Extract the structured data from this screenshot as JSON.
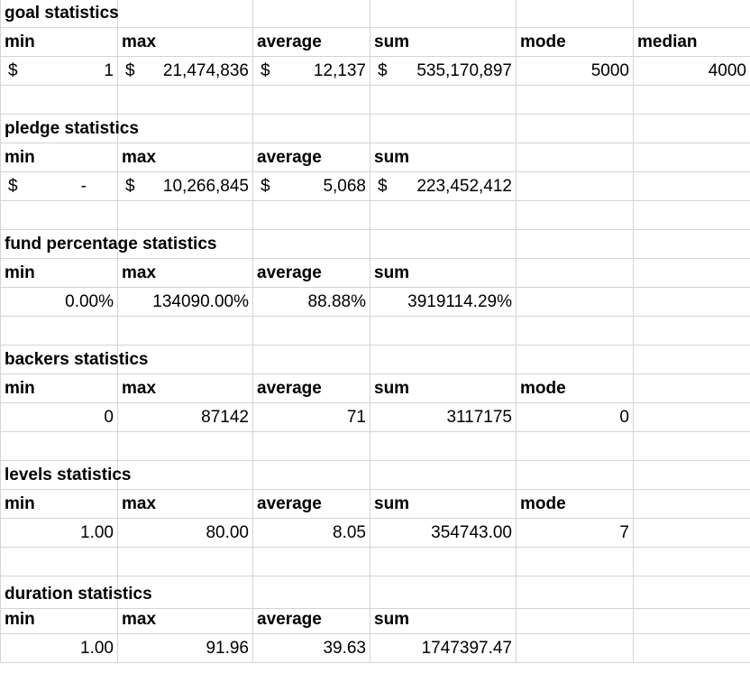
{
  "sections": {
    "goal": {
      "title": "goal statistics",
      "headers": {
        "min": "min",
        "max": "max",
        "average": "average",
        "sum": "sum",
        "mode": "mode",
        "median": "median"
      },
      "values": {
        "min_cur": "$",
        "min": "1",
        "max_cur": "$",
        "max": "21,474,836",
        "average_cur": "$",
        "average": "12,137",
        "sum_cur": "$",
        "sum": "535,170,897",
        "mode": "5000",
        "median": "4000"
      }
    },
    "pledge": {
      "title": "pledge statistics",
      "headers": {
        "min": "min",
        "max": "max",
        "average": "average",
        "sum": "sum"
      },
      "values": {
        "min_cur": "$",
        "min": "-",
        "max_cur": "$",
        "max": "10,266,845",
        "average_cur": "$",
        "average": "5,068",
        "sum_cur": "$",
        "sum": "223,452,412"
      }
    },
    "fund_percentage": {
      "title": "fund percentage statistics",
      "headers": {
        "min": "min",
        "max": "max",
        "average": "average",
        "sum": "sum"
      },
      "values": {
        "min": "0.00%",
        "max": "134090.00%",
        "average": "88.88%",
        "sum": "3919114.29%"
      }
    },
    "backers": {
      "title": "backers statistics",
      "headers": {
        "min": "min",
        "max": "max",
        "average": "average",
        "sum": "sum",
        "mode": "mode"
      },
      "values": {
        "min": "0",
        "max": "87142",
        "average": "71",
        "sum": "3117175",
        "mode": "0"
      }
    },
    "levels": {
      "title": "levels statistics",
      "headers": {
        "min": "min",
        "max": "max",
        "average": "average",
        "sum": "sum",
        "mode": "mode"
      },
      "values": {
        "min": "1.00",
        "max": "80.00",
        "average": "8.05",
        "sum": "354743.00",
        "mode": "7"
      }
    },
    "duration": {
      "title": "duration statistics",
      "headers": {
        "min": "min",
        "max": "max",
        "average": "average",
        "sum": "sum"
      },
      "values": {
        "min": "1.00",
        "max": "91.96",
        "average": "39.63",
        "sum": "1747397.47"
      }
    }
  },
  "colors": {
    "gridline": "#d4d4d4",
    "text": "#000000",
    "background": "#ffffff"
  }
}
